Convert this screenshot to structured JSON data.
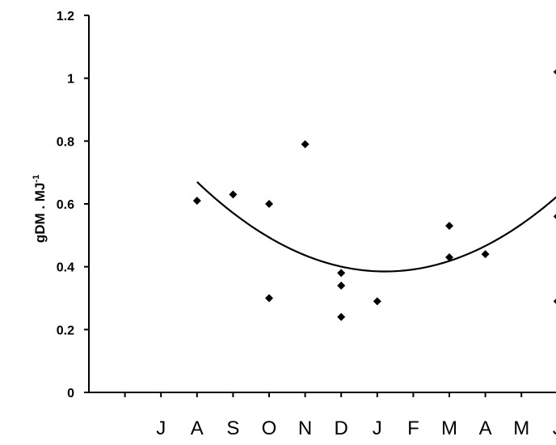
{
  "chart_data": {
    "type": "scatter",
    "title": "",
    "xlabel": "",
    "ylabel": "gDM . MJ",
    "ylabel_superscript": "-1",
    "ylim": [
      0,
      1.2
    ],
    "yticks": [
      0,
      0.2,
      0.4,
      0.6,
      0.8,
      1,
      1.2
    ],
    "ytick_labels": [
      "0",
      "0.2",
      "0.4",
      "0.6",
      "0.8",
      "1",
      "1.2"
    ],
    "x_tick_count": 13,
    "month_labels": [
      "J",
      "A",
      "S",
      "O",
      "N",
      "D",
      "J",
      "F",
      "M",
      "A",
      "M",
      "J"
    ],
    "month_positions": [
      2,
      3,
      4,
      5,
      6,
      7,
      8,
      9,
      10,
      11,
      12,
      13
    ],
    "points": [
      {
        "x": 3,
        "y": 0.61
      },
      {
        "x": 4,
        "y": 0.63
      },
      {
        "x": 5,
        "y": 0.6
      },
      {
        "x": 5,
        "y": 0.3
      },
      {
        "x": 6,
        "y": 0.79
      },
      {
        "x": 7,
        "y": 0.38
      },
      {
        "x": 7,
        "y": 0.34
      },
      {
        "x": 7,
        "y": 0.24
      },
      {
        "x": 8,
        "y": 0.29
      },
      {
        "x": 10,
        "y": 0.53
      },
      {
        "x": 10,
        "y": 0.43
      },
      {
        "x": 11,
        "y": 0.44
      },
      {
        "x": 13,
        "y": 1.02
      },
      {
        "x": 13,
        "y": 0.56
      },
      {
        "x": 13,
        "y": 0.29
      }
    ],
    "trend_line": {
      "type": "quadratic",
      "x_range": [
        3,
        13
      ],
      "points": [
        {
          "x": 3,
          "y": 0.67
        },
        {
          "x": 8.3,
          "y": 0.385
        },
        {
          "x": 13,
          "y": 0.625
        }
      ]
    },
    "grid": false,
    "legend": "none",
    "marker": "diamond",
    "color": "#000000"
  }
}
